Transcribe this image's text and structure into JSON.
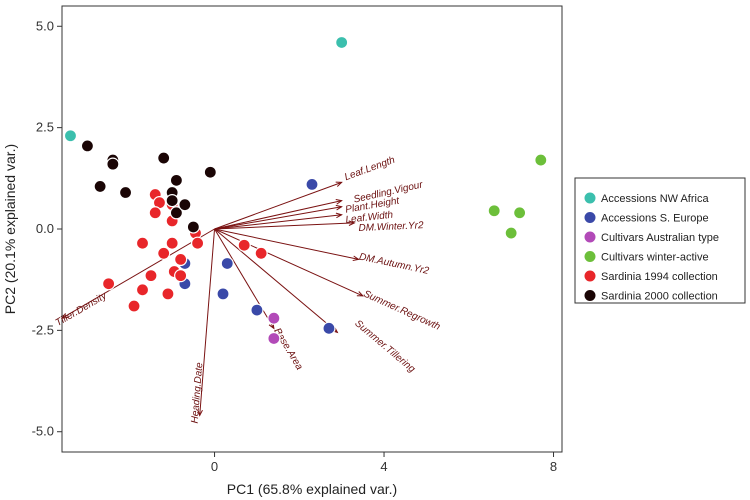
{
  "chart_data": {
    "type": "scatter",
    "xlabel": "PC1 (65.8% explained var.)",
    "ylabel": "PC2 (20.1% explained var.)",
    "xlim": [
      -3.6,
      8.2
    ],
    "ylim": [
      -5.5,
      5.5
    ],
    "xticks": [
      0,
      4,
      8
    ],
    "yticks": [
      5.0,
      2.5,
      0.0,
      -2.5,
      -5.0
    ],
    "xtick_labels": [
      "0",
      "4",
      "8"
    ],
    "ytick_labels": [
      "5.0",
      "2.5",
      "0.0",
      "-2.5",
      "-5.0"
    ],
    "grid": false,
    "legend_position": "right",
    "series": [
      {
        "name": "Accessions NW Africa",
        "color": "#3bbfad",
        "points": [
          [
            3.0,
            4.6
          ],
          [
            -3.4,
            2.3
          ]
        ]
      },
      {
        "name": "Accessions S. Europe",
        "color": "#3a49a8",
        "points": [
          [
            2.3,
            1.1
          ],
          [
            -0.7,
            -0.85
          ],
          [
            -0.7,
            -1.35
          ],
          [
            0.3,
            -0.85
          ],
          [
            0.2,
            -1.6
          ],
          [
            1.0,
            -2.0
          ],
          [
            2.7,
            -2.45
          ]
        ]
      },
      {
        "name": "Cultivars Australian type",
        "color": "#b24ab8",
        "points": [
          [
            1.4,
            -2.2
          ],
          [
            1.4,
            -2.7
          ]
        ]
      },
      {
        "name": "Cultivars winter-active",
        "color": "#6cbf3a",
        "points": [
          [
            7.7,
            1.7
          ],
          [
            6.6,
            0.45
          ],
          [
            7.2,
            0.4
          ],
          [
            7.0,
            -0.1
          ]
        ]
      },
      {
        "name": "Sardinia 1994 collection",
        "color": "#e8262a",
        "points": [
          [
            -1.4,
            0.85
          ],
          [
            -1.3,
            0.65
          ],
          [
            -1.4,
            0.4
          ],
          [
            -1.0,
            0.6
          ],
          [
            -1.0,
            0.2
          ],
          [
            -0.45,
            -0.1
          ],
          [
            -0.4,
            -0.35
          ],
          [
            -1.7,
            -0.35
          ],
          [
            -1.0,
            -0.35
          ],
          [
            -1.2,
            -0.6
          ],
          [
            -0.8,
            -0.75
          ],
          [
            -0.95,
            -1.05
          ],
          [
            -0.8,
            -1.15
          ],
          [
            -1.5,
            -1.15
          ],
          [
            -1.7,
            -1.5
          ],
          [
            -1.1,
            -1.6
          ],
          [
            -1.9,
            -1.9
          ],
          [
            -2.5,
            -1.35
          ],
          [
            0.7,
            -0.4
          ],
          [
            1.1,
            -0.6
          ]
        ]
      },
      {
        "name": "Sardinia 2000 collection",
        "color": "#1a0505",
        "points": [
          [
            -3.0,
            2.05
          ],
          [
            -2.4,
            1.7
          ],
          [
            -2.4,
            1.6
          ],
          [
            -2.7,
            1.05
          ],
          [
            -2.1,
            0.9
          ],
          [
            -1.2,
            1.75
          ],
          [
            -0.9,
            1.2
          ],
          [
            -1.0,
            0.9
          ],
          [
            -1.0,
            0.7
          ],
          [
            -0.9,
            0.4
          ],
          [
            -0.7,
            0.6
          ],
          [
            -0.5,
            0.05
          ],
          [
            -0.1,
            1.4
          ]
        ]
      }
    ],
    "vectors": [
      {
        "label": "Leaf.Length",
        "end": [
          3.0,
          1.15
        ],
        "label_pos": [
          3.1,
          1.2
        ]
      },
      {
        "label": "Seedling.Vigour",
        "end": [
          3.0,
          0.7
        ],
        "label_pos": [
          3.3,
          0.65
        ]
      },
      {
        "label": "Plant.Height",
        "end": [
          3.0,
          0.55
        ],
        "label_pos": [
          3.1,
          0.4
        ]
      },
      {
        "label": "Leaf.Width",
        "end": [
          3.0,
          0.35
        ],
        "label_pos": [
          3.1,
          0.15
        ]
      },
      {
        "label": "DM.Winter.Yr2",
        "end": [
          3.3,
          0.15
        ],
        "label_pos": [
          3.4,
          -0.05
        ]
      },
      {
        "label": "DM.Autumn.Yr2",
        "end": [
          3.4,
          -0.75
        ],
        "label_pos": [
          3.4,
          -0.75
        ]
      },
      {
        "label": "Summer.Regrowth",
        "end": [
          3.5,
          -1.65
        ],
        "label_pos": [
          3.5,
          -1.65
        ]
      },
      {
        "label": "Summer.Tillering",
        "end": [
          2.9,
          -2.55
        ],
        "label_pos": [
          3.3,
          -2.35
        ]
      },
      {
        "label": "Base.Area",
        "end": [
          1.4,
          -2.45
        ],
        "label_pos": [
          1.4,
          -2.5
        ]
      },
      {
        "label": "Heading.Date",
        "end": [
          -0.35,
          -4.6
        ],
        "label_pos": [
          -0.4,
          -4.8
        ]
      },
      {
        "label": "Tiller.Density",
        "end": [
          -3.6,
          -2.2
        ],
        "label_pos": [
          -3.7,
          -2.4
        ]
      }
    ],
    "vector_origin": [
      0.0,
      0.0
    ]
  }
}
